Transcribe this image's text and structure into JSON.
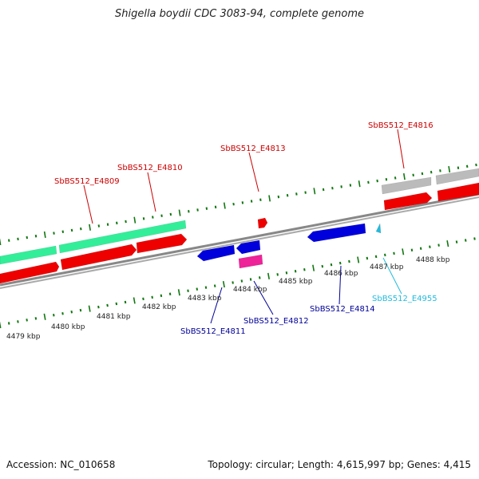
{
  "header": {
    "title": "Shigella boydii CDC 3083-94, complete genome"
  },
  "footer": {
    "accession": "Accession: NC_010658",
    "summary": "Topology: circular; Length: 4,615,997 bp; Genes: 4,415"
  },
  "colors": {
    "red": "#ee0000",
    "aqua": "#33ee99",
    "blue": "#0000dd",
    "magenta": "#ee2299",
    "gray": "#bbbbbb",
    "cyan": "#22bbdd",
    "tick": "#117711",
    "label_red": "#cc0000",
    "label_blue": "#000099",
    "label_cyan": "#22bbdd"
  },
  "scale_labels": [
    "4479 kbp",
    "4480 kbp",
    "4481 kbp",
    "4482 kbp",
    "4483 kbp",
    "4484 kbp",
    "4485 kbp",
    "4486 kbp",
    "4487 kbp",
    "4488 kbp"
  ],
  "gene_labels": [
    {
      "id": "SbBS512_E4809",
      "color_key": "label_red"
    },
    {
      "id": "SbBS512_E4810",
      "color_key": "label_red"
    },
    {
      "id": "SbBS512_E4813",
      "color_key": "label_red"
    },
    {
      "id": "SbBS512_E4816",
      "color_key": "label_red"
    },
    {
      "id": "SbBS512_E4811",
      "color_key": "label_blue"
    },
    {
      "id": "SbBS512_E4812",
      "color_key": "label_blue"
    },
    {
      "id": "SbBS512_E4814",
      "color_key": "label_blue"
    },
    {
      "id": "SbBS512_E4955",
      "color_key": "label_cyan"
    }
  ]
}
